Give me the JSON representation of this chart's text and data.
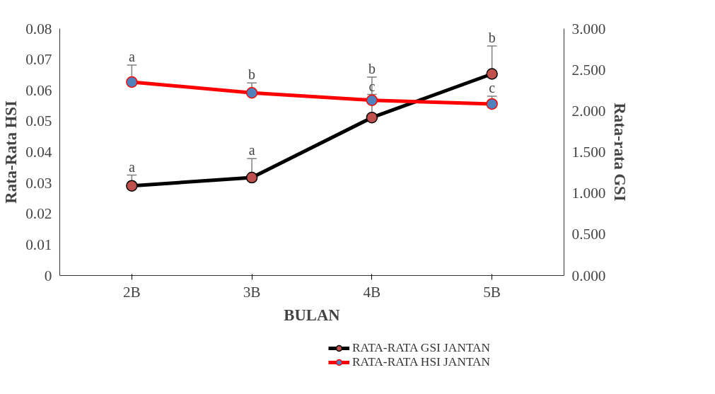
{
  "chart_data": {
    "type": "line",
    "xlabel": "BULAN",
    "ylabel": "Rata-Rata HSI",
    "y2label": "Rata-rata GSI",
    "categories": [
      "2B",
      "3B",
      "4B",
      "5B"
    ],
    "series": [
      {
        "name": "RATA-RATA GSI JANTAN",
        "color": "#000000",
        "colors": [
          "#c0504d",
          "#c0504d",
          "#c0504d",
          "#c0504d"
        ],
        "axis": "y2",
        "values": [
          1.09,
          1.19,
          1.92,
          2.45
        ],
        "errors": [
          [
            1.09,
            1.22
          ],
          [
            1.19,
            1.42
          ],
          [
            1.92,
            2.2
          ],
          [
            2.45,
            2.79
          ]
        ],
        "value_labels": [
          "a",
          "a",
          "c",
          "b"
        ]
      },
      {
        "name": "RATA-RATA HSI JANTAN",
        "color": "#ff0000",
        "colors": [
          "#4f81bd",
          "#4f81bd",
          "#4f81bd",
          "#4f81bd"
        ],
        "values": [
          0.0627,
          0.0592,
          0.0568,
          0.0556
        ],
        "errors": [
          [
            0.0627,
            0.0682
          ],
          [
            0.0592,
            0.0624
          ],
          [
            0.0568,
            0.0643
          ],
          [
            0.0556,
            0.0581
          ]
        ],
        "value_labels": [
          "a",
          "b",
          "b",
          "c"
        ]
      }
    ],
    "ylim": [
      0,
      0.08
    ],
    "yticks": [
      0,
      0.01,
      0.02,
      0.03,
      0.04,
      0.05,
      0.06,
      0.07,
      0.08
    ],
    "y2lim": [
      0,
      3
    ],
    "y2ticks": [
      {
        "value": 0,
        "label": "0.000"
      },
      {
        "value": 0.5,
        "label": "0.500"
      },
      {
        "value": 1,
        "label": "1.000"
      },
      {
        "value": 1.5,
        "label": "1.500"
      },
      {
        "value": 2,
        "label": "2.000"
      },
      {
        "value": 2.5,
        "label": "2.500"
      },
      {
        "value": 3,
        "label": "3.000"
      }
    ],
    "grid": false,
    "legend": "bottom right",
    "marker": "circle",
    "line_style": "solid"
  }
}
